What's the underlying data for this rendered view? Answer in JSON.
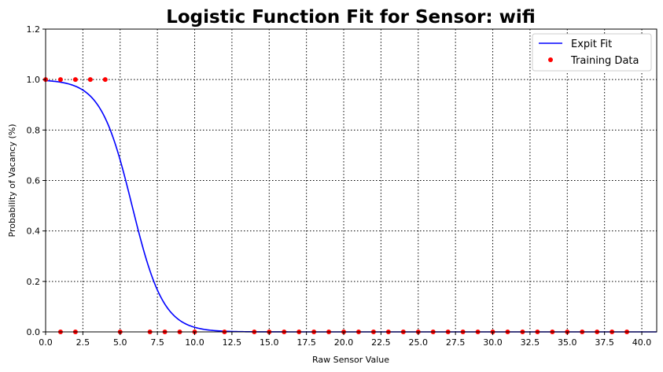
{
  "chart_data": {
    "type": "line",
    "title": "Logistic Function Fit for Sensor: wifi",
    "xlabel": "Raw Sensor Value",
    "ylabel": "Probability of Vacancy (%)",
    "xlim": [
      0,
      41
    ],
    "ylim": [
      0,
      1.2
    ],
    "xticks": [
      "0.0",
      "2.5",
      "5.0",
      "7.5",
      "10.0",
      "12.5",
      "15.0",
      "17.5",
      "20.0",
      "22.5",
      "25.0",
      "27.5",
      "30.0",
      "32.5",
      "35.0",
      "37.5",
      "40.0"
    ],
    "yticks": [
      "0.0",
      "0.2",
      "0.4",
      "0.6",
      "0.8",
      "1.0",
      "1.2"
    ],
    "grid": true,
    "legend_position": "top-right",
    "series": [
      {
        "name": "Expit Fit",
        "kind": "line",
        "color": "#0000ff",
        "model": {
          "midpoint": 5.8,
          "slope": 0.95,
          "x_range": [
            0,
            41
          ]
        }
      },
      {
        "name": "Training Data",
        "kind": "points",
        "color": "#ff0000",
        "points": [
          [
            0,
            1
          ],
          [
            1,
            1
          ],
          [
            2,
            1
          ],
          [
            3,
            1
          ],
          [
            4,
            1
          ],
          [
            1,
            0
          ],
          [
            2,
            0
          ],
          [
            5,
            0
          ],
          [
            7,
            0
          ],
          [
            8,
            0
          ],
          [
            9,
            0
          ],
          [
            10,
            0
          ],
          [
            12,
            0
          ],
          [
            14,
            0
          ],
          [
            15,
            0
          ],
          [
            16,
            0
          ],
          [
            17,
            0
          ],
          [
            18,
            0
          ],
          [
            19,
            0
          ],
          [
            20,
            0
          ],
          [
            21,
            0
          ],
          [
            22,
            0
          ],
          [
            23,
            0
          ],
          [
            24,
            0
          ],
          [
            25,
            0
          ],
          [
            26,
            0
          ],
          [
            27,
            0
          ],
          [
            28,
            0
          ],
          [
            29,
            0
          ],
          [
            30,
            0
          ],
          [
            31,
            0
          ],
          [
            32,
            0
          ],
          [
            33,
            0
          ],
          [
            34,
            0
          ],
          [
            35,
            0
          ],
          [
            36,
            0
          ],
          [
            37,
            0
          ],
          [
            38,
            0
          ],
          [
            39,
            0
          ]
        ]
      }
    ]
  }
}
